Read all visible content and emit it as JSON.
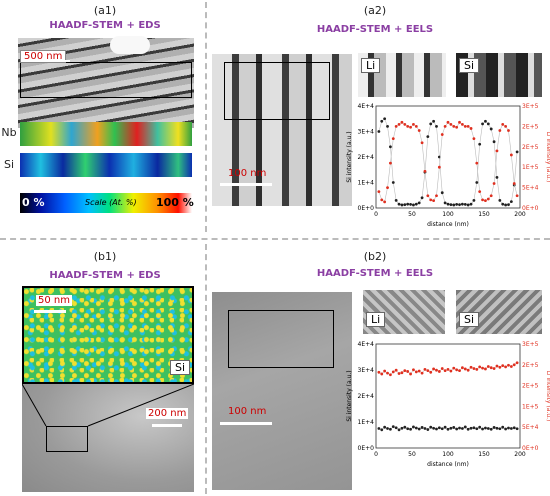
{
  "panels": {
    "a1": {
      "label": "(a1)",
      "heading": "HAADF-STEM + EDS",
      "scale": "500 nm",
      "maps": [
        "Nb",
        "Si"
      ],
      "colorbar": {
        "min": "0 %",
        "max": "100 %",
        "caption": "Scale (At. %)"
      }
    },
    "a2": {
      "label": "(a2)",
      "heading": "HAADF-STEM + EELS",
      "scale": "100 nm",
      "insets": [
        "Li",
        "Si"
      ]
    },
    "b1": {
      "label": "(b1)",
      "heading": "HAADF-STEM + EDS",
      "scale_top": "50 nm",
      "scale_bottom": "200 nm",
      "inset": "Si"
    },
    "b2": {
      "label": "(b2)",
      "heading": "HAADF-STEM + EELS",
      "scale": "100 nm",
      "insets": [
        "Li",
        "Si"
      ]
    }
  },
  "chart_data": [
    {
      "type": "scatter",
      "xlabel": "distance (nm)",
      "ylabel": "Si intensity (a.u.)",
      "y2label": "Li intensity (a.u.)",
      "xticks": [
        "0",
        "50",
        "100",
        "150",
        "200"
      ],
      "yticks": [
        "0E+0",
        "1E+4",
        "2E+4",
        "3E+4",
        "4E+4"
      ],
      "y2ticks": [
        "0E+0",
        "5E+4",
        "1E+5",
        "2E+5",
        "2E+5",
        "3E+5"
      ],
      "xlim": [
        0,
        200
      ],
      "ylim": [
        0,
        40000
      ],
      "y2lim": [
        0,
        250000
      ],
      "series": [
        {
          "color": "#222222",
          "axis": "left",
          "x": [
            4,
            8,
            12,
            16,
            20,
            24,
            28,
            32,
            36,
            40,
            44,
            48,
            52,
            56,
            60,
            64,
            68,
            72,
            76,
            80,
            84,
            88,
            92,
            96,
            100,
            104,
            108,
            112,
            116,
            120,
            124,
            128,
            132,
            136,
            140,
            144,
            148,
            152,
            156,
            160,
            164,
            168,
            172,
            176,
            180,
            184,
            188,
            192,
            196
          ],
          "y": [
            30000,
            34000,
            35000,
            32000,
            24000,
            10000,
            3000,
            1500,
            1200,
            1300,
            1500,
            1400,
            1200,
            1500,
            2000,
            4000,
            14000,
            28000,
            33000,
            34000,
            32000,
            20000,
            6000,
            2000,
            1500,
            1300,
            1200,
            1400,
            1300,
            1500,
            1400,
            1200,
            1500,
            3000,
            10000,
            25000,
            33000,
            34000,
            33000,
            31000,
            26000,
            12000,
            3000,
            1500,
            1200,
            1300,
            2500,
            9000,
            22000
          ]
        },
        {
          "color": "#e03020",
          "axis": "right",
          "x": [
            4,
            8,
            12,
            16,
            20,
            24,
            28,
            32,
            36,
            40,
            44,
            48,
            52,
            56,
            60,
            64,
            68,
            72,
            76,
            80,
            84,
            88,
            92,
            96,
            100,
            104,
            108,
            112,
            116,
            120,
            124,
            128,
            132,
            136,
            140,
            144,
            148,
            152,
            156,
            160,
            164,
            168,
            172,
            176,
            180,
            184,
            188,
            192,
            196
          ],
          "y": [
            40000,
            20000,
            15000,
            50000,
            110000,
            170000,
            200000,
            205000,
            210000,
            205000,
            200000,
            198000,
            205000,
            200000,
            190000,
            160000,
            90000,
            30000,
            20000,
            18000,
            30000,
            100000,
            180000,
            200000,
            210000,
            205000,
            200000,
            198000,
            210000,
            205000,
            200000,
            200000,
            195000,
            170000,
            110000,
            40000,
            20000,
            18000,
            22000,
            30000,
            60000,
            140000,
            190000,
            205000,
            200000,
            190000,
            130000,
            60000,
            30000
          ]
        }
      ]
    },
    {
      "type": "scatter",
      "xlabel": "distance (nm)",
      "ylabel": "Si intensity (a.u.)",
      "y2label": "Li intensity (a.u.)",
      "xticks": [
        "0",
        "50",
        "100",
        "150",
        "200"
      ],
      "yticks": [
        "0E+0",
        "1E+4",
        "2E+4",
        "3E+4",
        "4E+4"
      ],
      "y2ticks": [
        "0E+0",
        "5E+4",
        "1E+5",
        "2E+5",
        "2E+5",
        "3E+5"
      ],
      "xlim": [
        0,
        200
      ],
      "ylim": [
        0,
        40000
      ],
      "y2lim": [
        0,
        250000
      ],
      "series": [
        {
          "color": "#222222",
          "axis": "left",
          "x": [
            4,
            8,
            12,
            16,
            20,
            24,
            28,
            32,
            36,
            40,
            44,
            48,
            52,
            56,
            60,
            64,
            68,
            72,
            76,
            80,
            84,
            88,
            92,
            96,
            100,
            104,
            108,
            112,
            116,
            120,
            124,
            128,
            132,
            136,
            140,
            144,
            148,
            152,
            156,
            160,
            164,
            168,
            172,
            176,
            180,
            184,
            188,
            192,
            196
          ],
          "y": [
            7500,
            7000,
            8000,
            7500,
            7200,
            8200,
            7800,
            7000,
            7600,
            8000,
            7400,
            7200,
            8100,
            7700,
            7300,
            7900,
            7500,
            7100,
            8000,
            7600,
            7300,
            7800,
            7400,
            8000,
            7200,
            7600,
            7900,
            7300,
            7700,
            7500,
            8100,
            7200,
            7600,
            7800,
            7400,
            8000,
            7300,
            7700,
            7500,
            7200,
            7900,
            7600,
            7400,
            8000,
            7300,
            7700,
            7500,
            7800,
            7400
          ]
        },
        {
          "color": "#e03020",
          "axis": "right",
          "x": [
            4,
            8,
            12,
            16,
            20,
            24,
            28,
            32,
            36,
            40,
            44,
            48,
            52,
            56,
            60,
            64,
            68,
            72,
            76,
            80,
            84,
            88,
            92,
            96,
            100,
            104,
            108,
            112,
            116,
            120,
            124,
            128,
            132,
            136,
            140,
            144,
            148,
            152,
            156,
            160,
            164,
            168,
            172,
            176,
            180,
            184,
            188,
            192,
            196
          ],
          "y": [
            182000,
            178000,
            185000,
            180000,
            176000,
            183000,
            187000,
            179000,
            181000,
            186000,
            184000,
            178000,
            188000,
            183000,
            185000,
            180000,
            189000,
            186000,
            182000,
            190000,
            187000,
            184000,
            191000,
            186000,
            189000,
            185000,
            192000,
            188000,
            186000,
            193000,
            190000,
            187000,
            194000,
            191000,
            189000,
            195000,
            192000,
            190000,
            196000,
            193000,
            191000,
            197000,
            194000,
            198000,
            195000,
            199000,
            196000,
            200000,
            205000
          ]
        }
      ]
    }
  ]
}
